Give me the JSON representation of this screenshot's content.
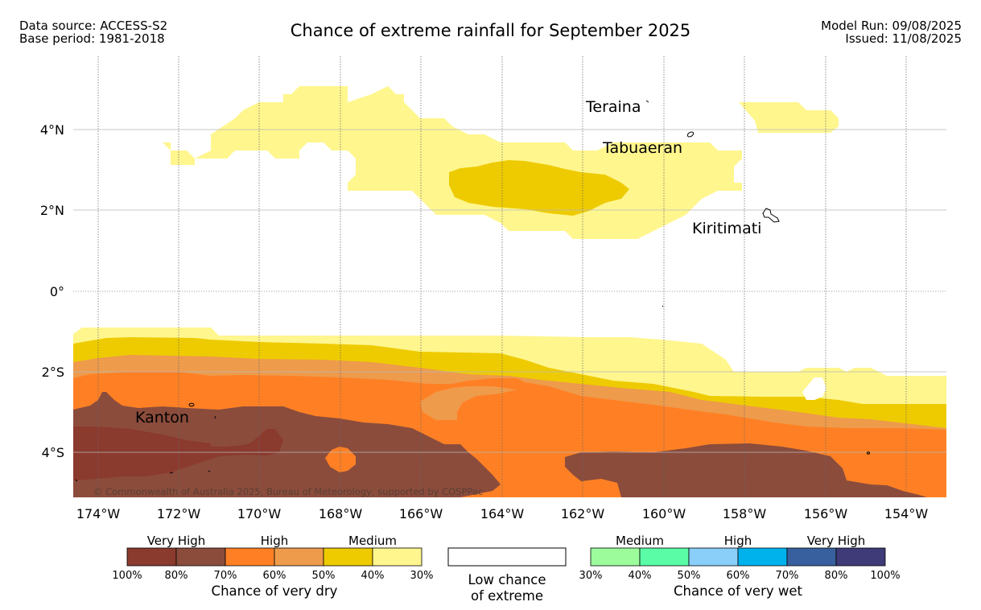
{
  "header": {
    "data_source": "Data source: ACCESS-S2",
    "base_period": "Base period: 1981-2018",
    "title": "Chance of extreme rainfall for September 2025",
    "model_run": "Model Run: 09/08/2025",
    "issued": "Issued: 11/08/2025"
  },
  "map": {
    "lon_labels": [
      "174°W",
      "172°W",
      "170°W",
      "168°W",
      "166°W",
      "164°W",
      "162°W",
      "160°W",
      "158°W",
      "156°W",
      "154°W"
    ],
    "lat_labels": [
      "4°N",
      "2°N",
      "0°",
      "2°S",
      "4°S"
    ],
    "places": {
      "teraina": "Teraina",
      "tabuaeran": "Tabuaeran",
      "kiritimati": "Kiritimati",
      "kanton": "Kanton"
    },
    "copyright": "© Commonwealth of Australia 2025, Bureau of Meteorology, supported by COSPPac"
  },
  "legend": {
    "dry": {
      "category_labels": [
        "Very High",
        "High",
        "Medium"
      ],
      "colors": [
        "#8b3a2e",
        "#8b4c3c",
        "#ff8024",
        "#ee9b4c",
        "#eecb00",
        "#fff68e"
      ],
      "ticks": [
        "100%",
        "80%",
        "70%",
        "60%",
        "50%",
        "40%",
        "30%"
      ],
      "title": "Chance of very dry"
    },
    "low": {
      "line1": "Low chance",
      "line2": "of extreme"
    },
    "wet": {
      "category_labels": [
        "Medium",
        "High",
        "Very High"
      ],
      "colors": [
        "#9cfc9c",
        "#5afca6",
        "#8acefa",
        "#00b2ec",
        "#38609e",
        "#3e3b78"
      ],
      "ticks": [
        "30%",
        "40%",
        "50%",
        "60%",
        "70%",
        "80%",
        "100%"
      ],
      "title": "Chance of very wet"
    }
  }
}
